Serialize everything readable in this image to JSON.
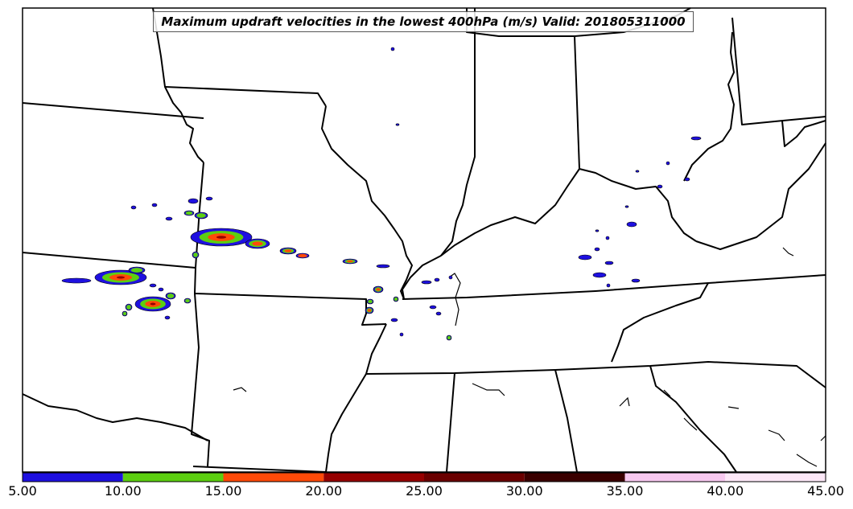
{
  "title": "Maximum updraft velocities in the lowest 400hPa (m/s) Valid: 201805311000",
  "colorbar": {
    "ticks": [
      "5.00",
      "10.00",
      "15.00",
      "20.00",
      "25.00",
      "30.00",
      "35.00",
      "40.00",
      "45.00"
    ],
    "bins": [
      {
        "from": 5,
        "to": 10,
        "color": "#1e10e0"
      },
      {
        "from": 10,
        "to": 15,
        "color": "#5ccf10"
      },
      {
        "from": 15,
        "to": 20,
        "color": "#ff4a08"
      },
      {
        "from": 20,
        "to": 25,
        "color": "#960000"
      },
      {
        "from": 25,
        "to": 30,
        "color": "#6a0000"
      },
      {
        "from": 30,
        "to": 35,
        "color": "#3a0000"
      },
      {
        "from": 35,
        "to": 40,
        "color": "#f8c8f0"
      },
      {
        "from": 40,
        "to": 45,
        "color": "#fde8f8"
      }
    ]
  },
  "colors": {
    "boundary": "#000000",
    "background": "#ffffff"
  }
}
